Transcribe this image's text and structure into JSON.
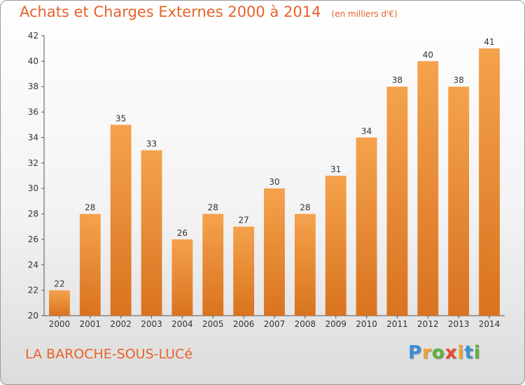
{
  "chart_data": {
    "type": "bar",
    "title": "Achats et Charges Externes 2000 à 2014",
    "unit_note": "(en milliers d'€)",
    "categories": [
      "2000",
      "2001",
      "2002",
      "2003",
      "2004",
      "2005",
      "2006",
      "2007",
      "2008",
      "2009",
      "2010",
      "2011",
      "2012",
      "2013",
      "2014"
    ],
    "values": [
      22,
      28,
      35,
      33,
      26,
      28,
      27,
      30,
      28,
      31,
      34,
      38,
      40,
      38,
      41
    ],
    "data_labels": [
      "22",
      "28",
      "35",
      "33",
      "26",
      "28",
      "27",
      "30",
      "28",
      "31",
      "34",
      "38",
      "40",
      "38",
      "41"
    ],
    "yticks": [
      "20",
      "22",
      "24",
      "26",
      "28",
      "30",
      "32",
      "34",
      "36",
      "38",
      "40",
      "42"
    ],
    "ylim": [
      20,
      42
    ],
    "xlabel": "",
    "ylabel": "",
    "grid": false,
    "bar_color": "#f5a24c",
    "bar_color_dark": "#d9731f"
  },
  "footer": {
    "commune": "LA BAROCHE-SOUS-LUCé"
  },
  "logo": {
    "letters": [
      "P",
      "r",
      "o",
      "x",
      "i",
      "t",
      "i"
    ],
    "colors": [
      "#3e8ed8",
      "#f0a030",
      "#5cb135",
      "#e74a2e",
      "#f0a030",
      "#3e8ed8",
      "#5cb135"
    ]
  }
}
